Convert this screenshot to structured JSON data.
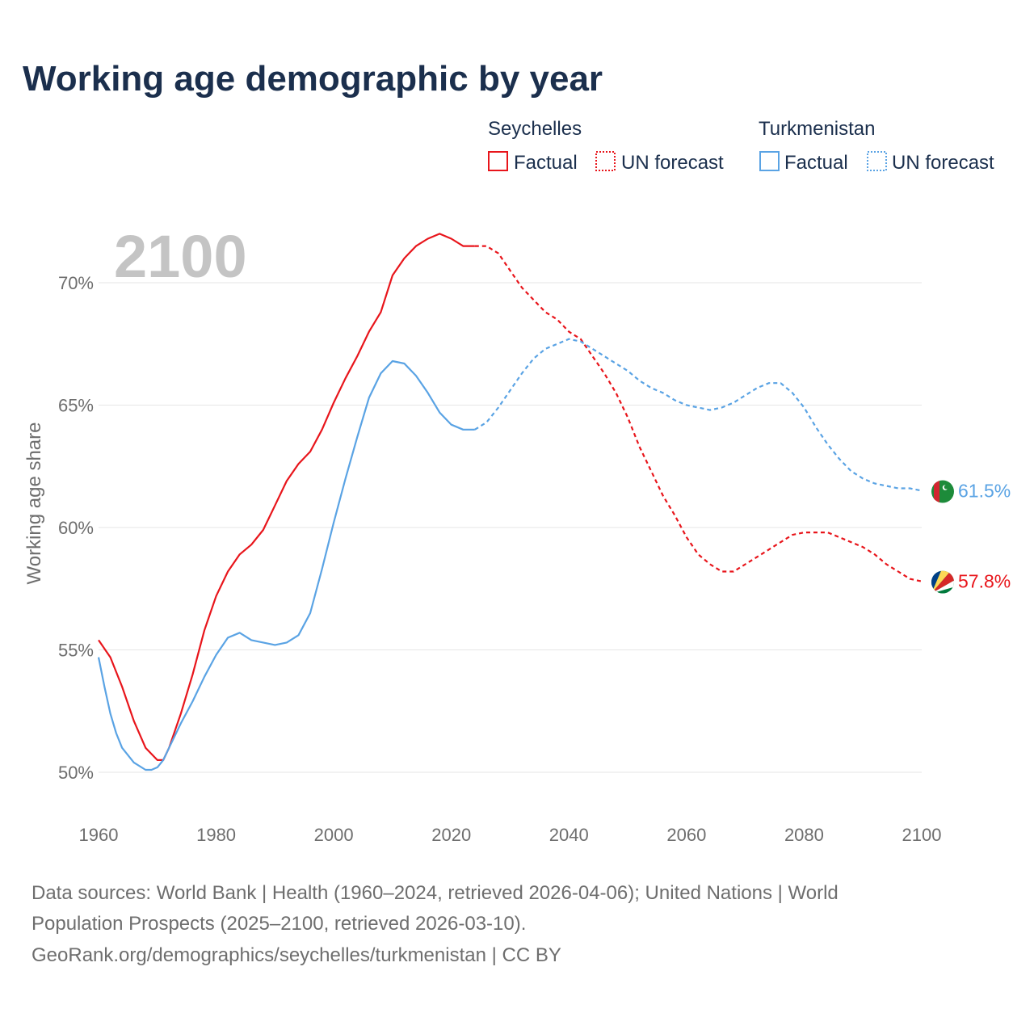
{
  "chart_data": {
    "type": "line",
    "title": "Working age demographic by year",
    "year_indicator": "2100",
    "ylabel": "Working age share",
    "xlabel": "",
    "xlim": [
      1960,
      2100
    ],
    "ylim": [
      48.5,
      72.5
    ],
    "x_ticks": [
      1960,
      1980,
      2000,
      2020,
      2040,
      2060,
      2080,
      2100
    ],
    "y_ticks": [
      50,
      55,
      60,
      65,
      70
    ],
    "y_tick_labels": [
      "50%",
      "55%",
      "60%",
      "65%",
      "70%"
    ],
    "x_tick_labels": [
      "1960",
      "1980",
      "2000",
      "2020",
      "2040",
      "2060",
      "2080",
      "2100"
    ],
    "grid": true,
    "legend": {
      "position": "top-right",
      "groups": [
        {
          "name": "Seychelles",
          "factual_label": "Factual",
          "forecast_label": "UN forecast"
        },
        {
          "name": "Turkmenistan",
          "factual_label": "Factual",
          "forecast_label": "UN forecast"
        }
      ]
    },
    "series": [
      {
        "name": "Seychelles",
        "color": "#e8151b",
        "end_label": "57.8%",
        "factual": {
          "x": [
            1960,
            1962,
            1964,
            1966,
            1968,
            1970,
            1971,
            1972,
            1974,
            1976,
            1978,
            1980,
            1982,
            1984,
            1986,
            1988,
            1990,
            1992,
            1994,
            1996,
            1998,
            2000,
            2002,
            2004,
            2006,
            2008,
            2010,
            2012,
            2014,
            2016,
            2018,
            2020,
            2022,
            2024
          ],
          "y": [
            55.4,
            54.7,
            53.5,
            52.1,
            51.0,
            50.5,
            50.5,
            51.0,
            52.4,
            54.0,
            55.8,
            57.2,
            58.2,
            58.9,
            59.3,
            59.9,
            60.9,
            61.9,
            62.6,
            63.1,
            64.0,
            65.1,
            66.1,
            67.0,
            68.0,
            68.8,
            70.3,
            71.0,
            71.5,
            71.8,
            72.0,
            71.8,
            71.5,
            71.5
          ]
        },
        "forecast": {
          "x": [
            2024,
            2026,
            2028,
            2030,
            2032,
            2034,
            2036,
            2038,
            2040,
            2042,
            2044,
            2046,
            2048,
            2050,
            2052,
            2054,
            2056,
            2058,
            2060,
            2062,
            2064,
            2066,
            2068,
            2070,
            2072,
            2074,
            2076,
            2078,
            2080,
            2082,
            2084,
            2086,
            2088,
            2090,
            2092,
            2094,
            2096,
            2098,
            2100
          ],
          "y": [
            71.5,
            71.5,
            71.2,
            70.5,
            69.8,
            69.3,
            68.8,
            68.5,
            68.0,
            67.7,
            67.0,
            66.3,
            65.5,
            64.5,
            63.3,
            62.3,
            61.3,
            60.5,
            59.6,
            58.9,
            58.5,
            58.2,
            58.2,
            58.5,
            58.8,
            59.1,
            59.4,
            59.7,
            59.8,
            59.8,
            59.8,
            59.6,
            59.4,
            59.2,
            58.9,
            58.5,
            58.2,
            57.9,
            57.8
          ]
        }
      },
      {
        "name": "Turkmenistan",
        "color": "#5aa3e4",
        "end_label": "61.5%",
        "factual": {
          "x": [
            1960,
            1961,
            1962,
            1963,
            1964,
            1966,
            1968,
            1969,
            1970,
            1971,
            1972,
            1974,
            1976,
            1978,
            1980,
            1982,
            1984,
            1986,
            1988,
            1990,
            1992,
            1994,
            1996,
            1998,
            2000,
            2002,
            2004,
            2006,
            2008,
            2010,
            2012,
            2014,
            2016,
            2018,
            2020,
            2022,
            2024
          ],
          "y": [
            54.7,
            53.5,
            52.4,
            51.6,
            51.0,
            50.4,
            50.1,
            50.1,
            50.2,
            50.5,
            51.0,
            52.0,
            52.9,
            53.9,
            54.8,
            55.5,
            55.7,
            55.4,
            55.3,
            55.2,
            55.3,
            55.6,
            56.5,
            58.3,
            60.2,
            62.0,
            63.7,
            65.3,
            66.3,
            66.8,
            66.7,
            66.2,
            65.5,
            64.7,
            64.2,
            64.0,
            64.0
          ]
        },
        "forecast": {
          "x": [
            2024,
            2026,
            2028,
            2030,
            2032,
            2034,
            2036,
            2038,
            2040,
            2042,
            2044,
            2046,
            2048,
            2050,
            2052,
            2054,
            2056,
            2058,
            2060,
            2062,
            2064,
            2066,
            2068,
            2070,
            2072,
            2074,
            2076,
            2078,
            2080,
            2082,
            2084,
            2086,
            2088,
            2090,
            2092,
            2094,
            2096,
            2098,
            2100
          ],
          "y": [
            64.0,
            64.3,
            64.9,
            65.6,
            66.3,
            66.9,
            67.3,
            67.5,
            67.7,
            67.6,
            67.3,
            67.0,
            66.7,
            66.4,
            66.0,
            65.7,
            65.5,
            65.2,
            65.0,
            64.9,
            64.8,
            64.9,
            65.1,
            65.4,
            65.7,
            65.9,
            65.9,
            65.5,
            64.9,
            64.1,
            63.4,
            62.8,
            62.3,
            62.0,
            61.8,
            61.7,
            61.6,
            61.6,
            61.5
          ]
        }
      }
    ]
  },
  "footer": {
    "line1": "Data sources: World Bank | Health (1960–2024, retrieved 2026-04-06); United Nations | World",
    "line2": "Population Prospects (2025–2100, retrieved 2026-03-10).",
    "line3": "GeoRank.org/demographics/seychelles/turkmenistan | CC BY"
  },
  "flags": {
    "seychelles": [
      "#003f87",
      "#fcd856",
      "#d62828",
      "#ffffff",
      "#007a3d"
    ],
    "turkmenistan": {
      "field": "#1d8b3a",
      "stripe": "#d22630",
      "emblem": "#ffffff"
    }
  }
}
